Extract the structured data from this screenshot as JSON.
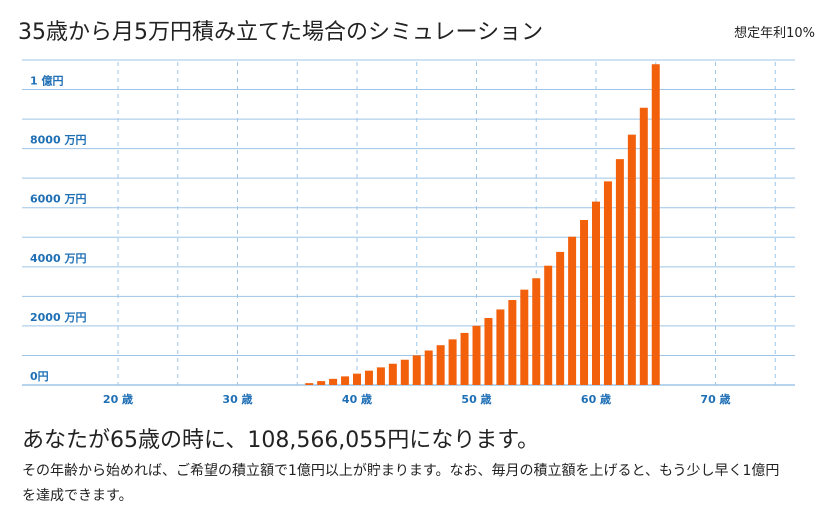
{
  "header": {
    "title": "35歳から月5万円積み立てた場合のシミュレーション",
    "rate_label": "想定年利10%"
  },
  "colors": {
    "bar": "#f2600c",
    "grid": "#9ec5e8",
    "axis_text": "#1f6fb5",
    "baseline": "#9ec5e8"
  },
  "chart_data": {
    "type": "bar",
    "title": "35歳から月5万円積み立てた場合のシミュレーション",
    "xlabel": "",
    "ylabel": "",
    "ylim": [
      0,
      110000000
    ],
    "xlim": [
      15,
      77
    ],
    "y_ticks": [
      {
        "value": 0,
        "label": "0円"
      },
      {
        "value": 20000000,
        "label": "2000 万円"
      },
      {
        "value": 40000000,
        "label": "4000 万円"
      },
      {
        "value": 60000000,
        "label": "6000 万円"
      },
      {
        "value": 80000000,
        "label": "8000 万円"
      },
      {
        "value": 100000000,
        "label": "1 億円"
      }
    ],
    "x_ticks": [
      {
        "value": 20,
        "label": "20 歳"
      },
      {
        "value": 30,
        "label": "30 歳"
      },
      {
        "value": 40,
        "label": "40 歳"
      },
      {
        "value": 50,
        "label": "50 歳"
      },
      {
        "value": 60,
        "label": "60 歳"
      },
      {
        "value": 70,
        "label": "70 歳"
      }
    ],
    "grid": true,
    "ages": [
      36,
      37,
      38,
      39,
      40,
      41,
      42,
      43,
      44,
      45,
      46,
      47,
      48,
      49,
      50,
      51,
      52,
      53,
      54,
      55,
      56,
      57,
      58,
      59,
      60,
      61,
      62,
      63,
      64,
      65
    ],
    "values": [
      630000,
      1320000,
      2080000,
      2920000,
      3840000,
      4850000,
      5970000,
      7200000,
      8550000,
      10030000,
      11670000,
      13470000,
      15450000,
      17630000,
      20030000,
      22670000,
      25570000,
      28760000,
      32270000,
      36130000,
      40380000,
      45050000,
      50190000,
      55840000,
      62070000,
      68920000,
      76450000,
      84730000,
      93840000,
      108566055
    ]
  },
  "result": {
    "text": "あなたが65歳の時に、108,566,055円になります。"
  },
  "description": {
    "text": "その年齢から始めれば、ご希望の積立額で1億円以上が貯まります。なお、毎月の積立額を上げると、もう少し早く1億円を達成できます。"
  }
}
